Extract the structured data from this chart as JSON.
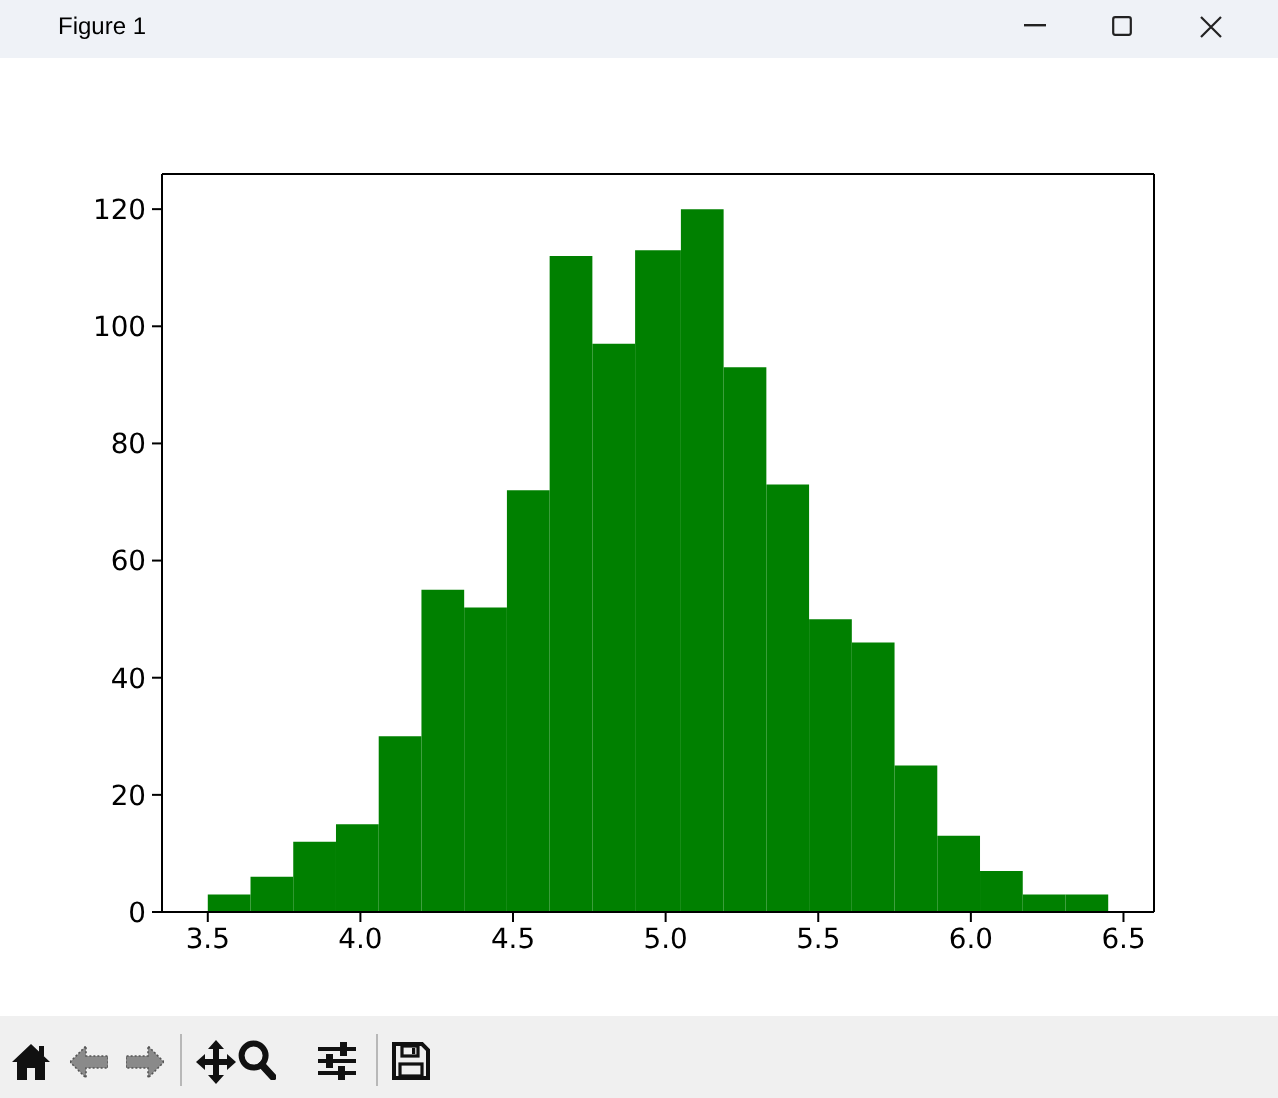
{
  "chart_data": {
    "type": "histogram",
    "annotations": [
      "Figure 1"
    ],
    "bins": [
      3.5,
      3.64,
      3.78,
      3.92,
      4.06,
      4.2,
      4.34,
      4.48,
      4.62,
      4.76,
      4.9,
      5.05,
      5.19,
      5.33,
      5.47,
      5.61,
      5.75,
      5.89,
      6.03,
      6.17,
      6.31,
      6.45
    ],
    "values": [
      3,
      6,
      12,
      15,
      30,
      55,
      52,
      72,
      112,
      97,
      113,
      120,
      93,
      73,
      50,
      46,
      25,
      13,
      7,
      3,
      3
    ],
    "color": "#008000",
    "xlim": [
      3.35,
      6.6
    ],
    "xticks": [
      3.5,
      {
        "value": 4,
        "label": "4.0"
      },
      4.5,
      {
        "value": 5,
        "label": "5.0"
      },
      5.5,
      {
        "value": 6,
        "label": "6.0"
      },
      6.5
    ],
    "ylim": [
      0,
      126
    ],
    "yticks": [
      0,
      20,
      40,
      60,
      80,
      100,
      120
    ]
  }
}
